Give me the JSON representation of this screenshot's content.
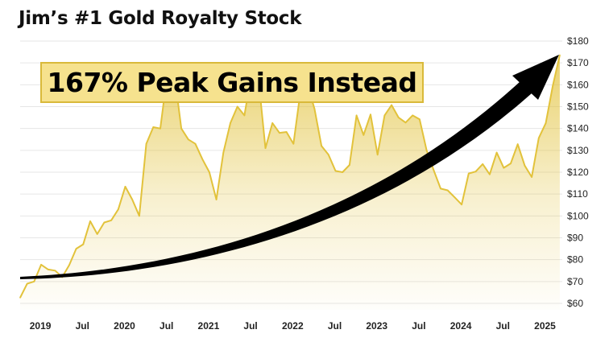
{
  "chart_data": {
    "type": "area",
    "title": "Jim’s #1 Gold Royalty Stock",
    "annotation": "167% Peak Gains Instead",
    "xlabel": "",
    "ylabel": "",
    "ylim": [
      60,
      180
    ],
    "y_ticks": [
      "$60",
      "$70",
      "$80",
      "$90",
      "$100",
      "$110",
      "$120",
      "$130",
      "$140",
      "$150",
      "$160",
      "$170",
      "$180"
    ],
    "x_ticks": [
      {
        "label": "2019",
        "date": "2019-01"
      },
      {
        "label": "Jul",
        "date": "2019-07"
      },
      {
        "label": "2020",
        "date": "2020-01"
      },
      {
        "label": "Jul",
        "date": "2020-07"
      },
      {
        "label": "2021",
        "date": "2021-01"
      },
      {
        "label": "Jul",
        "date": "2021-07"
      },
      {
        "label": "2022",
        "date": "2022-01"
      },
      {
        "label": "Jul",
        "date": "2022-07"
      },
      {
        "label": "2023",
        "date": "2023-01"
      },
      {
        "label": "Jul",
        "date": "2023-07"
      },
      {
        "label": "2024",
        "date": "2024-01"
      },
      {
        "label": "Jul",
        "date": "2024-07"
      },
      {
        "label": "2025",
        "date": "2025-01"
      }
    ],
    "y_axis_position": "right",
    "grid": true,
    "start_date": "2018-10",
    "values": [
      62.6,
      69,
      70,
      77.7,
      75.5,
      75,
      72,
      77.5,
      85,
      87,
      97.6,
      91.7,
      97,
      98,
      103,
      113.4,
      107.5,
      100,
      133,
      140.6,
      140,
      165,
      165,
      140,
      135,
      133,
      126,
      120,
      107.5,
      129,
      142.5,
      150,
      146,
      165,
      163,
      131,
      142.5,
      138,
      138.4,
      133,
      157,
      160,
      149,
      132,
      128,
      120.6,
      120,
      123.3,
      146,
      137,
      146.4,
      128,
      146,
      150.7,
      145,
      142.7,
      146,
      144.2,
      130,
      121,
      112.5,
      111.7,
      108.5,
      105.2,
      119.4,
      120.3,
      123.7,
      119,
      129,
      122,
      124,
      132.8,
      123,
      117.8,
      135.6,
      142.4,
      159.5,
      173.6
    ],
    "colors": {
      "line": "#e2c23b",
      "fill": "#e2c23b",
      "arrow": "#000000",
      "callout_bg": "#f6e28e",
      "callout_border": "#d9b93a",
      "grid": "#e6e6e6"
    }
  }
}
